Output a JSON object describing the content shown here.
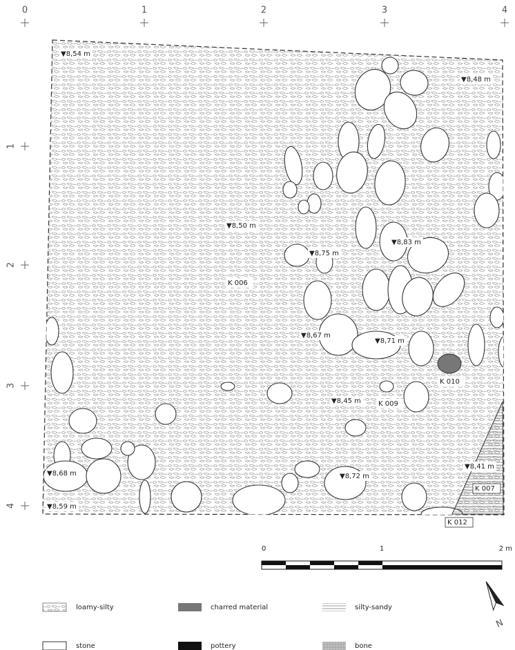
{
  "grid": {
    "x_labels": [
      "0",
      "1",
      "2",
      "3",
      "4"
    ],
    "y_labels": [
      "1",
      "2",
      "3",
      "4"
    ]
  },
  "elevations": [
    "▼8,54 m",
    "▼8,48 m",
    "▼8,50 m",
    "▼8,75 m",
    "▼8,83 m",
    "▼8,67 m",
    "▼8,71 m",
    "▼8,45 m",
    "▼8,68 m",
    "▼8,72 m",
    "▼8,41 m",
    "▼8,59 m"
  ],
  "features": [
    "K 006",
    "K 010",
    "K 009",
    "K 007",
    "K 012"
  ],
  "scale_bar": {
    "labels": [
      "0",
      "1",
      "2 m"
    ]
  },
  "legend": [
    "loamy-silty",
    "charred material",
    "silty-sandy",
    "stone",
    "pottery",
    "bone"
  ],
  "north": "N"
}
